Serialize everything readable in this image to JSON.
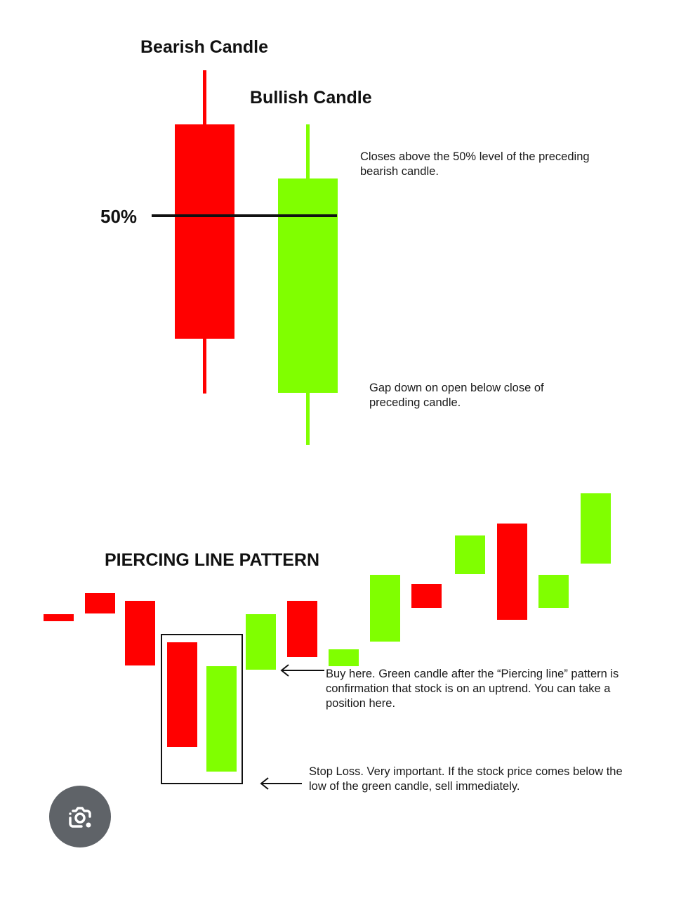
{
  "top": {
    "bearish_label": "Bearish Candle",
    "bullish_label": "Bullish Candle",
    "fifty_label": "50%",
    "note_close": "Closes above the 50% level of the preceding bearish candle.",
    "note_gap": "Gap down on open below close of preceding candle."
  },
  "bottom": {
    "pattern_title": "PIERCING LINE PATTERN",
    "note_buy": "Buy here. Green candle after the “Piercing line” pattern is confirmation that stock is on an uptrend. You can take a position here.",
    "note_stop": "Stop Loss. Very important. If the stock price comes below the low of the green candle, sell immediately."
  },
  "colors": {
    "bearish": "#ff0000",
    "bullish": "#80ff00",
    "line": "#111111"
  },
  "icons": {
    "lens_button": "google-lens-icon"
  }
}
